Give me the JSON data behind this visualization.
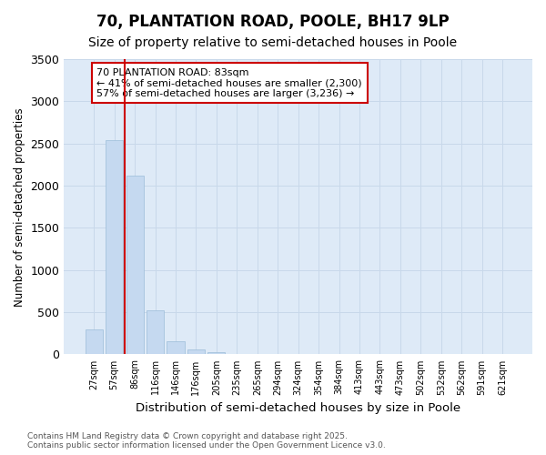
{
  "title": "70, PLANTATION ROAD, POOLE, BH17 9LP",
  "subtitle": "Size of property relative to semi-detached houses in Poole",
  "xlabel": "Distribution of semi-detached houses by size in Poole",
  "ylabel": "Number of semi-detached properties",
  "categories": [
    "27sqm",
    "57sqm",
    "86sqm",
    "116sqm",
    "146sqm",
    "176sqm",
    "205sqm",
    "235sqm",
    "265sqm",
    "294sqm",
    "324sqm",
    "354sqm",
    "384sqm",
    "413sqm",
    "443sqm",
    "473sqm",
    "502sqm",
    "532sqm",
    "562sqm",
    "591sqm",
    "621sqm"
  ],
  "values": [
    300,
    2540,
    2120,
    520,
    155,
    60,
    25,
    0,
    0,
    0,
    0,
    0,
    0,
    0,
    0,
    0,
    0,
    0,
    0,
    0,
    0
  ],
  "bar_color": "#c5d9f0",
  "bar_edge_color": "#9bbcd8",
  "grid_color": "#c8d8ea",
  "background_color": "#deeaf7",
  "vline_color": "#cc0000",
  "vline_x_index": 2,
  "ylim": [
    0,
    3500
  ],
  "yticks": [
    0,
    500,
    1000,
    1500,
    2000,
    2500,
    3000,
    3500
  ],
  "annotation_text": "70 PLANTATION ROAD: 83sqm\n← 41% of semi-detached houses are smaller (2,300)\n57% of semi-detached houses are larger (3,236) →",
  "annotation_box_color": "#cc0000",
  "footnote1": "Contains HM Land Registry data © Crown copyright and database right 2025.",
  "footnote2": "Contains public sector information licensed under the Open Government Licence v3.0.",
  "title_fontsize": 12,
  "subtitle_fontsize": 10,
  "tick_fontsize": 7,
  "ylabel_fontsize": 8.5,
  "xlabel_fontsize": 9.5,
  "annotation_fontsize": 8,
  "footnote_fontsize": 6.5
}
